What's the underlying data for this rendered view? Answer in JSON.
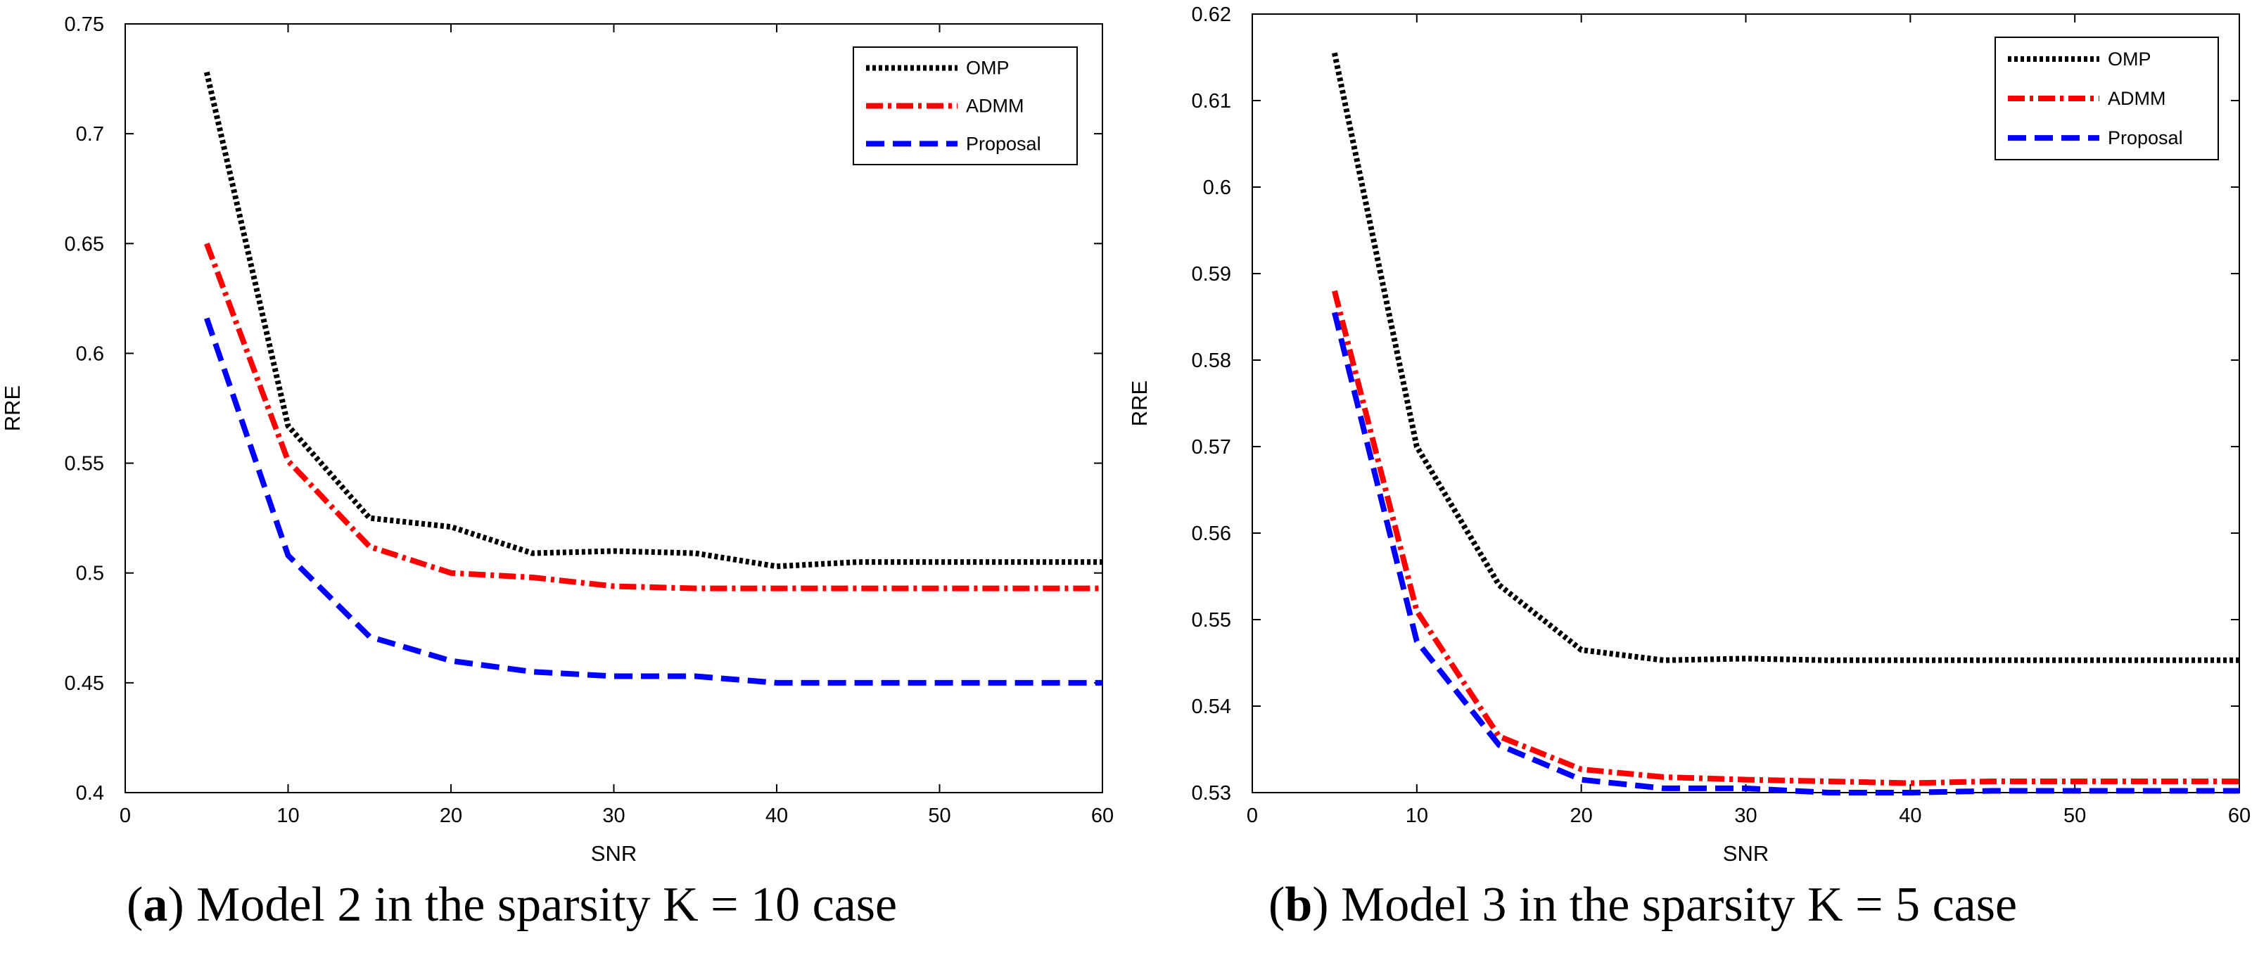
{
  "chart_data": [
    {
      "type": "line",
      "xlabel": "SNR",
      "ylabel": "RRE",
      "xlim": [
        0,
        60
      ],
      "ylim": [
        0.4,
        0.75
      ],
      "xticks": [
        "0",
        "10",
        "20",
        "30",
        "40",
        "50",
        "60"
      ],
      "yticks": [
        "0.4",
        "0.45",
        "0.5",
        "0.55",
        "0.6",
        "0.65",
        "0.7",
        "0.75"
      ],
      "legend": "top-right",
      "grid": false,
      "series": [
        {
          "name": "OMP",
          "color": "#000000",
          "style": "dotted",
          "x": [
            5,
            10,
            15,
            20,
            25,
            30,
            35,
            40,
            45,
            50,
            55,
            60
          ],
          "y": [
            0.728,
            0.567,
            0.525,
            0.521,
            0.509,
            0.51,
            0.509,
            0.503,
            0.505,
            0.505,
            0.505,
            0.505
          ]
        },
        {
          "name": "ADMM",
          "color": "#ff0000",
          "style": "dashdot",
          "x": [
            5,
            10,
            15,
            20,
            25,
            30,
            35,
            40,
            45,
            50,
            55,
            60
          ],
          "y": [
            0.65,
            0.551,
            0.512,
            0.5,
            0.498,
            0.494,
            0.493,
            0.493,
            0.493,
            0.493,
            0.493,
            0.493
          ]
        },
        {
          "name": "Proposal",
          "color": "#0000ff",
          "style": "dashed",
          "x": [
            5,
            10,
            15,
            20,
            25,
            30,
            35,
            40,
            45,
            50,
            55,
            60
          ],
          "y": [
            0.616,
            0.508,
            0.471,
            0.46,
            0.455,
            0.453,
            0.453,
            0.45,
            0.45,
            0.45,
            0.45,
            0.45
          ]
        }
      ]
    },
    {
      "type": "line",
      "xlabel": "SNR",
      "ylabel": "RRE",
      "xlim": [
        0,
        60
      ],
      "ylim": [
        0.53,
        0.62
      ],
      "xticks": [
        "0",
        "10",
        "20",
        "30",
        "40",
        "50",
        "60"
      ],
      "yticks": [
        "0.53",
        "0.54",
        "0.55",
        "0.56",
        "0.57",
        "0.58",
        "0.59",
        "0.6",
        "0.61",
        "0.62"
      ],
      "legend": "top-right",
      "grid": false,
      "series": [
        {
          "name": "OMP",
          "color": "#000000",
          "style": "dotted",
          "x": [
            5,
            10,
            15,
            20,
            25,
            30,
            35,
            40,
            45,
            50,
            55,
            60
          ],
          "y": [
            0.6155,
            0.57,
            0.554,
            0.5465,
            0.5453,
            0.5455,
            0.5453,
            0.5453,
            0.5453,
            0.5453,
            0.5453,
            0.5453
          ]
        },
        {
          "name": "ADMM",
          "color": "#ff0000",
          "style": "dashdot",
          "x": [
            5,
            10,
            15,
            20,
            25,
            30,
            35,
            40,
            45,
            50,
            55,
            60
          ],
          "y": [
            0.588,
            0.551,
            0.5365,
            0.5327,
            0.5318,
            0.5315,
            0.5313,
            0.5311,
            0.5313,
            0.5313,
            0.5313,
            0.5313
          ]
        },
        {
          "name": "Proposal",
          "color": "#0000ff",
          "style": "dashed",
          "x": [
            5,
            10,
            15,
            20,
            25,
            30,
            35,
            40,
            45,
            50,
            55,
            60
          ],
          "y": [
            0.5855,
            0.5475,
            0.5355,
            0.5315,
            0.5305,
            0.5305,
            0.53,
            0.53,
            0.5302,
            0.5302,
            0.5302,
            0.5302
          ]
        }
      ]
    }
  ],
  "captions": [
    {
      "letter": "a",
      "text": ") Model 2 in the sparsity K = 10 case"
    },
    {
      "letter": "b",
      "text": ") Model 3 in the sparsity K = 5 case"
    }
  ]
}
